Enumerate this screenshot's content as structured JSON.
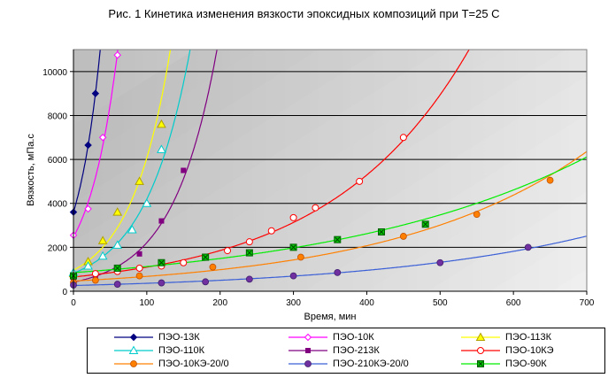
{
  "chart_data": {
    "type": "scatter",
    "title": "Рис. 1  Кинетика изменения вязкости эпоксидных композиций при Т=25 С",
    "xlabel": "Время, мин",
    "ylabel": "Вязкость, мПа.с",
    "xlim": [
      0,
      700
    ],
    "ylim": [
      0,
      11000
    ],
    "xticks": [
      0,
      100,
      200,
      300,
      400,
      500,
      600,
      700
    ],
    "yticks": [
      0,
      2000,
      4000,
      6000,
      8000,
      10000
    ],
    "grid": true,
    "legend_position": "bottom",
    "series": [
      {
        "name": "ПЭО-13К",
        "color": "#000080",
        "marker": "diamond-filled",
        "x": [
          0,
          20,
          30
        ],
        "y": [
          3600,
          6650,
          9000
        ]
      },
      {
        "name": "ПЭО-10К",
        "color": "#ff00ff",
        "marker": "diamond-open",
        "x": [
          0,
          20,
          40,
          60
        ],
        "y": [
          2550,
          3750,
          7000,
          10750
        ]
      },
      {
        "name": "ПЭО-113К",
        "color": "#ffff00",
        "marker": "triangle-filled",
        "x": [
          0,
          20,
          40,
          60,
          90,
          120
        ],
        "y": [
          800,
          1350,
          2300,
          3600,
          5000,
          7600
        ]
      },
      {
        "name": "ПЭО-110К",
        "color": "#00cccc",
        "marker": "triangle-open",
        "x": [
          0,
          20,
          40,
          60,
          80,
          100,
          120
        ],
        "y": [
          850,
          1150,
          1600,
          2100,
          2800,
          4000,
          6450
        ]
      },
      {
        "name": "ПЭО-213К",
        "color": "#800080",
        "marker": "square-filled",
        "x": [
          0,
          30,
          60,
          90,
          120,
          150
        ],
        "y": [
          450,
          700,
          1000,
          1700,
          3200,
          5500
        ]
      },
      {
        "name": "ПЭО-10КЭ",
        "color": "#ff0000",
        "marker": "circle-open",
        "x": [
          0,
          30,
          60,
          90,
          120,
          150,
          180,
          210,
          240,
          270,
          300,
          330,
          390,
          450
        ],
        "y": [
          700,
          800,
          900,
          1050,
          1150,
          1300,
          1550,
          1850,
          2250,
          2750,
          3350,
          3800,
          5000,
          7000
        ]
      },
      {
        "name": "ПЭО-10КЭ-20/0",
        "color": "#ff8000",
        "marker": "circle-filled",
        "x": [
          0,
          30,
          90,
          190,
          310,
          450,
          550,
          650
        ],
        "y": [
          400,
          500,
          700,
          1100,
          1550,
          2500,
          3500,
          5050
        ]
      },
      {
        "name": "ПЭО-210КЭ-20/0",
        "color": "#7030a0",
        "marker": "circle-filled",
        "x": [
          0,
          60,
          120,
          180,
          240,
          300,
          360,
          500,
          620
        ],
        "y": [
          280,
          320,
          380,
          430,
          550,
          700,
          850,
          1300,
          2000
        ]
      },
      {
        "name": "ПЭО-90К",
        "color": "#00cc00",
        "marker": "square-x",
        "x": [
          0,
          60,
          120,
          180,
          240,
          300,
          360,
          420,
          480
        ],
        "y": [
          700,
          1050,
          1300,
          1550,
          1750,
          2000,
          2350,
          2700,
          3050
        ]
      }
    ],
    "trend_color_override": {
      "ПЭО-10КЭ-20/0": "#ff8000",
      "ПЭО-210КЭ-20/0": "#3a5fd6",
      "ПЭО-90К": "#00ee00"
    }
  }
}
